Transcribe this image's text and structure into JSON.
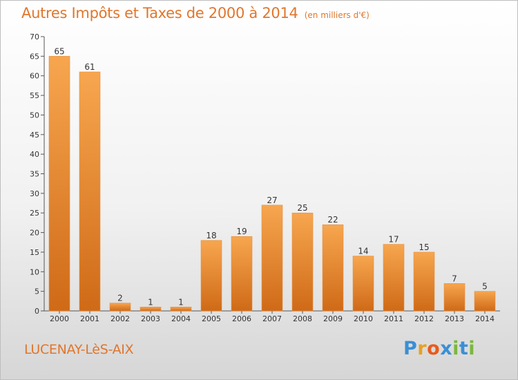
{
  "title": "Autres Impôts et Taxes de 2000 à 2014",
  "subtitle": "(en milliers d'€)",
  "place": "LUCENAY-LèS-AIX",
  "logo": {
    "letters": [
      "P",
      "r",
      "o",
      "x",
      "i",
      "t",
      "i"
    ],
    "colors": [
      "#3a8fd4",
      "#e8a020",
      "#e85a1e",
      "#3a8fd4",
      "#7ab83c",
      "#3a8fd4",
      "#7ab83c"
    ]
  },
  "colors": {
    "bar_light": "#f7a64f",
    "bar_dark": "#cf6a17",
    "accent": "#e0762c"
  },
  "chart_data": {
    "type": "bar",
    "categories": [
      "2000",
      "2001",
      "2002",
      "2003",
      "2004",
      "2005",
      "2006",
      "2007",
      "2008",
      "2009",
      "2010",
      "2011",
      "2012",
      "2013",
      "2014"
    ],
    "values": [
      65,
      61,
      2,
      1,
      1,
      18,
      19,
      27,
      25,
      22,
      14,
      17,
      15,
      7,
      5
    ],
    "title": "Autres Impôts et Taxes de 2000 à 2014",
    "subtitle": "(en milliers d'€)",
    "xlabel": "",
    "ylabel": "",
    "ylim": [
      0,
      70
    ],
    "yticks": [
      0,
      5,
      10,
      15,
      20,
      25,
      30,
      35,
      40,
      45,
      50,
      55,
      60,
      65,
      70
    ],
    "grid": false,
    "data_labels": true
  }
}
